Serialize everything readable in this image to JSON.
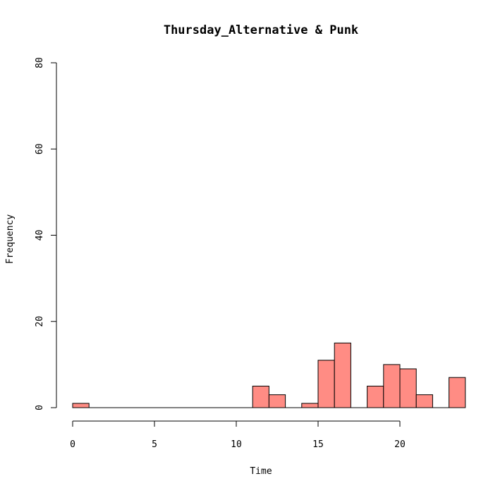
{
  "chart_data": {
    "type": "bar",
    "title": "Thursday_Alternative & Punk",
    "xlabel": "Time",
    "ylabel": "Frequency",
    "xlim": [
      0,
      24
    ],
    "ylim": [
      0,
      80
    ],
    "x_ticks": [
      "0",
      "5",
      "10",
      "15",
      "20"
    ],
    "y_ticks": [
      "0",
      "20",
      "40",
      "60",
      "80"
    ],
    "bar_color": "#ff8c84",
    "bins": [
      {
        "start": 0,
        "end": 1,
        "value": 1
      },
      {
        "start": 11,
        "end": 12,
        "value": 5
      },
      {
        "start": 12,
        "end": 13,
        "value": 3
      },
      {
        "start": 14,
        "end": 15,
        "value": 1
      },
      {
        "start": 15,
        "end": 16,
        "value": 11
      },
      {
        "start": 16,
        "end": 17,
        "value": 15
      },
      {
        "start": 18,
        "end": 19,
        "value": 5
      },
      {
        "start": 19,
        "end": 20,
        "value": 10
      },
      {
        "start": 20,
        "end": 21,
        "value": 9
      },
      {
        "start": 21,
        "end": 22,
        "value": 3
      },
      {
        "start": 23,
        "end": 24,
        "value": 7
      }
    ]
  }
}
